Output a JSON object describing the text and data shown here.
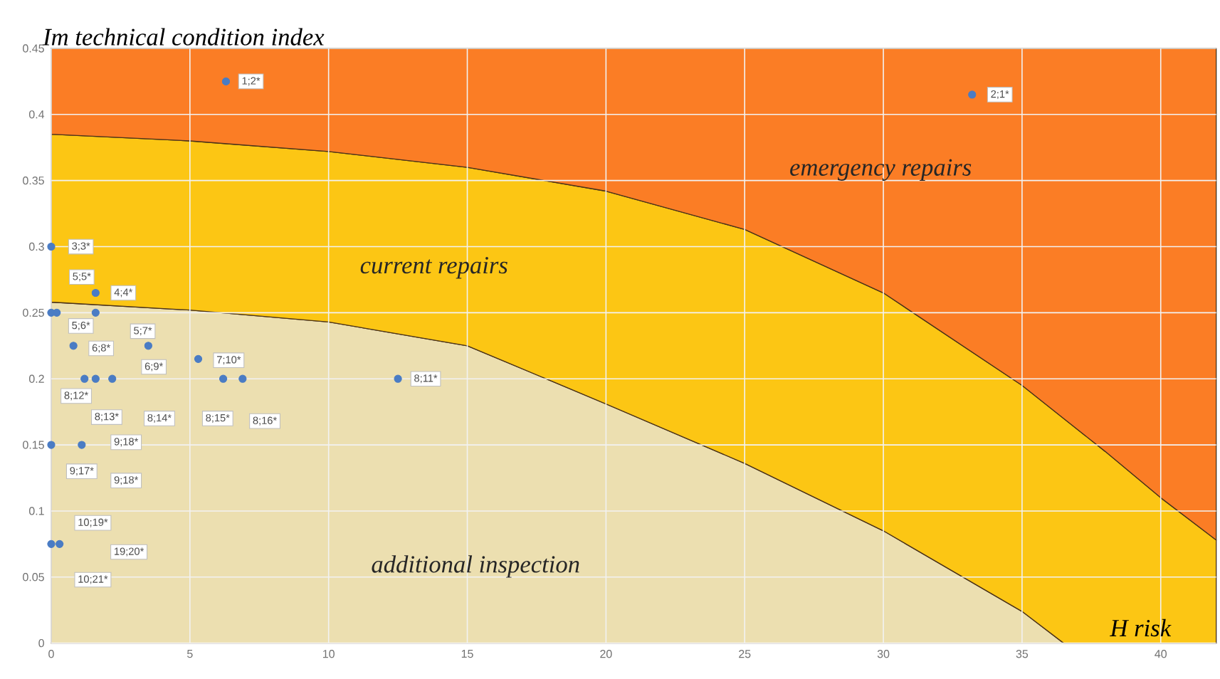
{
  "chart_data": {
    "type": "area",
    "stacked": true,
    "xlabel": "H risk",
    "ylabel": "Im technical condition index",
    "x": [
      0,
      5,
      10,
      15,
      20,
      25,
      30,
      35,
      36.5,
      38,
      40,
      42
    ],
    "series": [
      {
        "name": "additional inspection",
        "color": "#ecdfb0",
        "values": [
          0.258,
          0.252,
          0.243,
          0.225,
          0.181,
          0.136,
          0.085,
          0.024,
          0,
          0,
          0,
          0
        ]
      },
      {
        "name": "current repairs",
        "color": "#fcc614",
        "values": [
          0.127,
          0.128,
          0.129,
          0.135,
          0.161,
          0.177,
          0.18,
          0.171,
          0.17,
          0.145,
          0.11,
          0.078
        ]
      },
      {
        "name": "emergency repairs",
        "color": "#fb7d25",
        "values": [
          0.065,
          0.07,
          0.078,
          0.09,
          0.108,
          0.137,
          0.185,
          0.255,
          0.28,
          0.305,
          0.34,
          0.372
        ]
      },
      {
        "type": "scatter",
        "marker": "circle",
        "color": "#4a7cc4",
        "x": [
          6.3,
          33.2,
          0,
          1.6,
          0,
          0.2,
          1.6,
          0.8,
          3.5,
          5.3,
          1.2,
          1.6,
          2.2,
          6.2,
          6.9,
          12.5,
          0,
          1.1,
          0,
          0.3
        ],
        "values": [
          0.425,
          0.415,
          0.3,
          0.265,
          0.25,
          0.25,
          0.25,
          0.225,
          0.225,
          0.215,
          0.2,
          0.2,
          0.2,
          0.2,
          0.2,
          0.2,
          0.15,
          0.15,
          0.075,
          0.075
        ]
      }
    ],
    "grid": true,
    "xlim": [
      0,
      42
    ],
    "xticks": [
      0,
      5,
      10,
      15,
      20,
      25,
      30,
      35,
      40
    ],
    "ylim": [
      0,
      0.45
    ],
    "yticks": [
      0,
      0.05,
      0.1,
      0.15,
      0.2,
      0.25,
      0.3,
      0.35,
      0.4,
      0.45
    ],
    "annotations": [
      {
        "text": "1;2*",
        "x": 7.2,
        "y": 0.425
      },
      {
        "text": "2;1*",
        "x": 34.2,
        "y": 0.415
      },
      {
        "text": "3;3*",
        "x": 1.07,
        "y": 0.3
      },
      {
        "text": "5;5*",
        "x": 1.1,
        "y": 0.277
      },
      {
        "text": "4;4*",
        "x": 2.6,
        "y": 0.265
      },
      {
        "text": "5;6*",
        "x": 1.07,
        "y": 0.24
      },
      {
        "text": "5;7*",
        "x": 3.3,
        "y": 0.236
      },
      {
        "text": "6;8*",
        "x": 1.8,
        "y": 0.223
      },
      {
        "text": "6;9*",
        "x": 3.7,
        "y": 0.209
      },
      {
        "text": "7;10*",
        "x": 6.4,
        "y": 0.214
      },
      {
        "text": "8;11*",
        "x": 13.5,
        "y": 0.2
      },
      {
        "text": "8;12*",
        "x": 0.9,
        "y": 0.187
      },
      {
        "text": "8;13*",
        "x": 2.0,
        "y": 0.171
      },
      {
        "text": "8;14*",
        "x": 3.9,
        "y": 0.17
      },
      {
        "text": "8;15*",
        "x": 6.0,
        "y": 0.17
      },
      {
        "text": "8;16*",
        "x": 7.7,
        "y": 0.168
      },
      {
        "text": "9;18*",
        "x": 2.7,
        "y": 0.152
      },
      {
        "text": "9;17*",
        "x": 1.1,
        "y": 0.13
      },
      {
        "text": "9;18*",
        "x": 2.7,
        "y": 0.123
      },
      {
        "text": "10;19*",
        "x": 1.5,
        "y": 0.091
      },
      {
        "text": "19;20*",
        "x": 2.8,
        "y": 0.069
      },
      {
        "text": "10;21*",
        "x": 1.5,
        "y": 0.048
      }
    ]
  }
}
